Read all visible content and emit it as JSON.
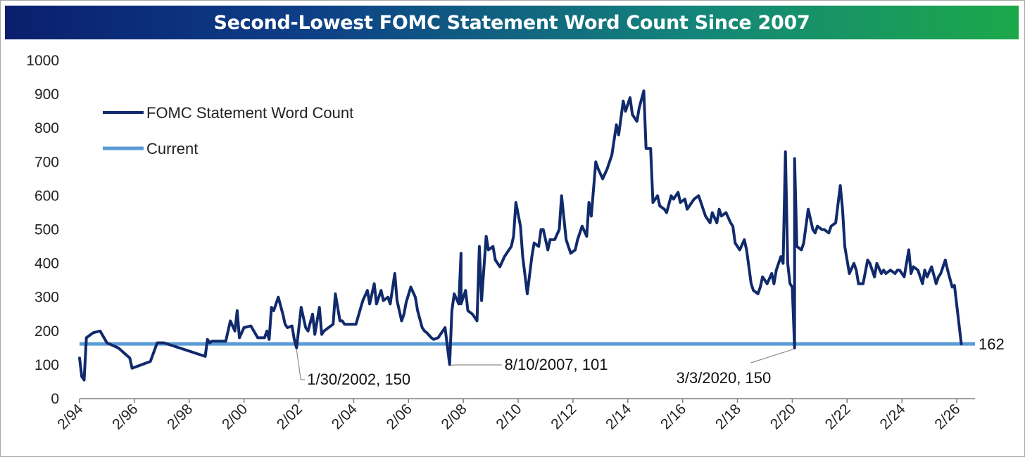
{
  "chart_data": {
    "type": "line",
    "title": "Second-Lowest FOMC Statement Word Count Since 2007",
    "colors": {
      "series": "#102a6b",
      "current": "#5b9bd5",
      "title_start": "#0a1f6e",
      "title_end": "#1ca84a"
    },
    "ylim": [
      0,
      1000
    ],
    "y_ticks": [
      "0",
      "100",
      "200",
      "300",
      "400",
      "500",
      "600",
      "700",
      "800",
      "900",
      "1000"
    ],
    "x_ticks": [
      "2/94",
      "2/96",
      "2/98",
      "2/00",
      "2/02",
      "2/04",
      "2/06",
      "2/08",
      "2/10",
      "2/12",
      "2/14",
      "2/16",
      "2/18",
      "2/20",
      "2/22",
      "2/24",
      "2/26"
    ],
    "xlim": [
      "1994-02",
      "2026-10"
    ],
    "legend_placement": "top-left",
    "grid": false,
    "series": [
      {
        "name": "FOMC Statement Word Count",
        "points": [
          [
            "1994-02",
            120
          ],
          [
            "1994-03",
            65
          ],
          [
            "1994-04",
            55
          ],
          [
            "1994-05",
            180
          ],
          [
            "1994-08",
            195
          ],
          [
            "1994-11",
            200
          ],
          [
            "1995-02",
            165
          ],
          [
            "1995-07",
            150
          ],
          [
            "1995-12",
            120
          ],
          [
            "1996-01",
            90
          ],
          [
            "1996-09",
            110
          ],
          [
            "1996-12",
            165
          ],
          [
            "1997-03",
            165
          ],
          [
            "1998-09",
            125
          ],
          [
            "1998-10",
            175
          ],
          [
            "1998-11",
            165
          ],
          [
            "1998-12",
            170
          ],
          [
            "1999-02",
            170
          ],
          [
            "1999-06",
            170
          ],
          [
            "1999-08",
            230
          ],
          [
            "1999-10",
            200
          ],
          [
            "1999-11",
            260
          ],
          [
            "1999-12",
            180
          ],
          [
            "2000-02",
            210
          ],
          [
            "2000-05",
            215
          ],
          [
            "2000-08",
            180
          ],
          [
            "2000-11",
            180
          ],
          [
            "2000-12",
            200
          ],
          [
            "2001-01",
            175
          ],
          [
            "2001-02",
            270
          ],
          [
            "2001-03",
            260
          ],
          [
            "2001-05",
            300
          ],
          [
            "2001-07",
            250
          ],
          [
            "2001-08",
            220
          ],
          [
            "2001-09",
            210
          ],
          [
            "2001-11",
            215
          ],
          [
            "2001-12",
            175
          ],
          [
            "2002-01",
            150
          ],
          [
            "2002-03",
            270
          ],
          [
            "2002-05",
            210
          ],
          [
            "2002-06",
            200
          ],
          [
            "2002-08",
            250
          ],
          [
            "2002-09",
            190
          ],
          [
            "2002-11",
            270
          ],
          [
            "2002-12",
            190
          ],
          [
            "2003-01",
            200
          ],
          [
            "2003-05",
            220
          ],
          [
            "2003-06",
            310
          ],
          [
            "2003-08",
            230
          ],
          [
            "2003-09",
            230
          ],
          [
            "2003-10",
            220
          ],
          [
            "2003-12",
            220
          ],
          [
            "2004-01",
            220
          ],
          [
            "2004-03",
            220
          ],
          [
            "2004-06",
            290
          ],
          [
            "2004-08",
            320
          ],
          [
            "2004-09",
            280
          ],
          [
            "2004-11",
            340
          ],
          [
            "2004-12",
            280
          ],
          [
            "2005-02",
            320
          ],
          [
            "2005-03",
            290
          ],
          [
            "2005-05",
            300
          ],
          [
            "2005-06",
            280
          ],
          [
            "2005-08",
            370
          ],
          [
            "2005-09",
            290
          ],
          [
            "2005-11",
            230
          ],
          [
            "2005-12",
            250
          ],
          [
            "2006-01",
            285
          ],
          [
            "2006-03",
            330
          ],
          [
            "2006-05",
            300
          ],
          [
            "2006-06",
            260
          ],
          [
            "2006-08",
            210
          ],
          [
            "2006-09",
            200
          ],
          [
            "2006-10",
            195
          ],
          [
            "2006-12",
            180
          ],
          [
            "2007-01",
            175
          ],
          [
            "2007-03",
            180
          ],
          [
            "2007-05",
            200
          ],
          [
            "2007-06",
            210
          ],
          [
            "2007-08",
            101
          ],
          [
            "2007-09",
            260
          ],
          [
            "2007-10",
            310
          ],
          [
            "2007-12",
            280
          ],
          [
            "2008-01",
            430
          ],
          [
            "2008-01",
            280
          ],
          [
            "2008-03",
            320
          ],
          [
            "2008-04",
            260
          ],
          [
            "2008-06",
            250
          ],
          [
            "2008-08",
            230
          ],
          [
            "2008-09",
            450
          ],
          [
            "2008-10",
            290
          ],
          [
            "2008-12",
            480
          ],
          [
            "2009-01",
            440
          ],
          [
            "2009-03",
            450
          ],
          [
            "2009-04",
            410
          ],
          [
            "2009-06",
            390
          ],
          [
            "2009-08",
            420
          ],
          [
            "2009-09",
            430
          ],
          [
            "2009-11",
            450
          ],
          [
            "2009-12",
            480
          ],
          [
            "2010-01",
            580
          ],
          [
            "2010-03",
            510
          ],
          [
            "2010-04",
            420
          ],
          [
            "2010-06",
            310
          ],
          [
            "2010-08",
            420
          ],
          [
            "2010-09",
            460
          ],
          [
            "2010-11",
            450
          ],
          [
            "2010-12",
            500
          ],
          [
            "2011-01",
            500
          ],
          [
            "2011-03",
            440
          ],
          [
            "2011-04",
            470
          ],
          [
            "2011-06",
            470
          ],
          [
            "2011-08",
            500
          ],
          [
            "2011-09",
            600
          ],
          [
            "2011-11",
            470
          ],
          [
            "2011-12",
            450
          ],
          [
            "2012-01",
            430
          ],
          [
            "2012-03",
            440
          ],
          [
            "2012-04",
            470
          ],
          [
            "2012-06",
            510
          ],
          [
            "2012-08",
            480
          ],
          [
            "2012-09",
            580
          ],
          [
            "2012-10",
            540
          ],
          [
            "2012-12",
            700
          ],
          [
            "2013-01",
            680
          ],
          [
            "2013-03",
            650
          ],
          [
            "2013-05",
            680
          ],
          [
            "2013-06",
            700
          ],
          [
            "2013-07",
            720
          ],
          [
            "2013-09",
            810
          ],
          [
            "2013-10",
            780
          ],
          [
            "2013-12",
            880
          ],
          [
            "2014-01",
            850
          ],
          [
            "2014-03",
            890
          ],
          [
            "2014-04",
            840
          ],
          [
            "2014-06",
            820
          ],
          [
            "2014-07",
            860
          ],
          [
            "2014-09",
            910
          ],
          [
            "2014-10",
            740
          ],
          [
            "2014-12",
            740
          ],
          [
            "2015-01",
            580
          ],
          [
            "2015-03",
            600
          ],
          [
            "2015-04",
            570
          ],
          [
            "2015-06",
            560
          ],
          [
            "2015-07",
            550
          ],
          [
            "2015-09",
            600
          ],
          [
            "2015-10",
            590
          ],
          [
            "2015-12",
            610
          ],
          [
            "2016-01",
            580
          ],
          [
            "2016-03",
            590
          ],
          [
            "2016-04",
            560
          ],
          [
            "2016-06",
            580
          ],
          [
            "2016-07",
            590
          ],
          [
            "2016-09",
            600
          ],
          [
            "2016-11",
            560
          ],
          [
            "2016-12",
            540
          ],
          [
            "2017-02",
            520
          ],
          [
            "2017-03",
            550
          ],
          [
            "2017-05",
            520
          ],
          [
            "2017-06",
            560
          ],
          [
            "2017-07",
            540
          ],
          [
            "2017-09",
            550
          ],
          [
            "2017-11",
            520
          ],
          [
            "2017-12",
            510
          ],
          [
            "2018-01",
            460
          ],
          [
            "2018-03",
            440
          ],
          [
            "2018-05",
            470
          ],
          [
            "2018-06",
            440
          ],
          [
            "2018-08",
            340
          ],
          [
            "2018-09",
            320
          ],
          [
            "2018-11",
            310
          ],
          [
            "2018-12",
            330
          ],
          [
            "2019-01",
            360
          ],
          [
            "2019-03",
            340
          ],
          [
            "2019-05",
            370
          ],
          [
            "2019-06",
            340
          ],
          [
            "2019-07",
            380
          ],
          [
            "2019-09",
            420
          ],
          [
            "2019-10",
            400
          ],
          [
            "2019-11",
            730
          ],
          [
            "2019-12",
            400
          ],
          [
            "2020-01",
            340
          ],
          [
            "2020-02",
            330
          ],
          [
            "2020-03",
            150
          ],
          [
            "2020-03",
            710
          ],
          [
            "2020-04",
            450
          ],
          [
            "2020-06",
            440
          ],
          [
            "2020-07",
            460
          ],
          [
            "2020-09",
            560
          ],
          [
            "2020-11",
            500
          ],
          [
            "2020-12",
            490
          ],
          [
            "2021-01",
            510
          ],
          [
            "2021-03",
            500
          ],
          [
            "2021-04",
            500
          ],
          [
            "2021-06",
            490
          ],
          [
            "2021-07",
            510
          ],
          [
            "2021-09",
            520
          ],
          [
            "2021-11",
            630
          ],
          [
            "2021-12",
            560
          ],
          [
            "2022-01",
            450
          ],
          [
            "2022-03",
            370
          ],
          [
            "2022-05",
            400
          ],
          [
            "2022-06",
            380
          ],
          [
            "2022-07",
            340
          ],
          [
            "2022-09",
            340
          ],
          [
            "2022-11",
            410
          ],
          [
            "2022-12",
            400
          ],
          [
            "2023-02",
            360
          ],
          [
            "2023-03",
            400
          ],
          [
            "2023-05",
            370
          ],
          [
            "2023-06",
            380
          ],
          [
            "2023-07",
            370
          ],
          [
            "2023-09",
            380
          ],
          [
            "2023-11",
            370
          ],
          [
            "2023-12",
            380
          ],
          [
            "2024-01",
            380
          ],
          [
            "2024-03",
            360
          ],
          [
            "2024-05",
            440
          ],
          [
            "2024-06",
            370
          ],
          [
            "2024-07",
            390
          ],
          [
            "2024-09",
            380
          ],
          [
            "2024-11",
            340
          ],
          [
            "2024-12",
            380
          ],
          [
            "2025-01",
            360
          ],
          [
            "2025-03",
            390
          ],
          [
            "2025-05",
            340
          ],
          [
            "2025-06",
            360
          ],
          [
            "2025-07",
            370
          ],
          [
            "2025-09",
            410
          ],
          [
            "2025-10",
            380
          ],
          [
            "2025-12",
            330
          ],
          [
            "2026-01",
            335
          ],
          [
            "2026-04",
            162
          ]
        ]
      },
      {
        "name": "Current",
        "constant_value": 162
      }
    ],
    "annotations": [
      {
        "date": "2002-01",
        "value": 150,
        "label": "1/30/2002, 150"
      },
      {
        "date": "2007-08",
        "value": 101,
        "label": "8/10/2007, 101"
      },
      {
        "date": "2020-03",
        "value": 150,
        "label": "3/3/2020, 150"
      }
    ],
    "end_label": "162"
  }
}
